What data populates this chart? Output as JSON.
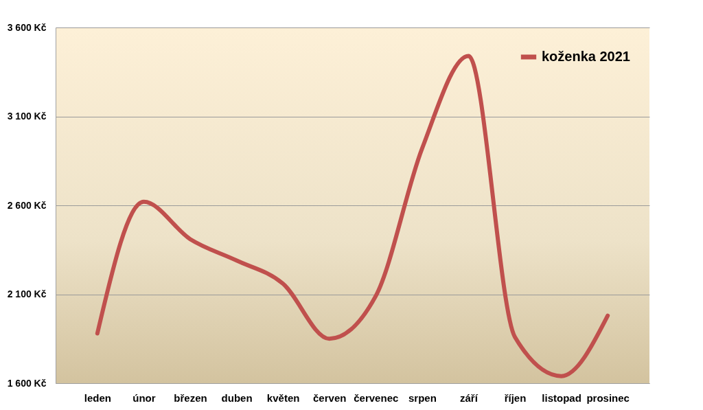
{
  "chart_data": {
    "type": "line",
    "categories": [
      "leden",
      "únor",
      "březen",
      "duben",
      "květen",
      "červen",
      "červenec",
      "srpen",
      "září",
      "říjen",
      "listopad",
      "prosinec"
    ],
    "series": [
      {
        "name": "koženka 2021",
        "color": "#c0504d",
        "values": [
          1880,
          2620,
          2410,
          2290,
          2160,
          1850,
          2090,
          2920,
          3440,
          1860,
          1640,
          1980
        ]
      }
    ],
    "ylim": [
      1600,
      3600
    ],
    "yticks": [
      {
        "value": 1600,
        "label": "1 600 Kč"
      },
      {
        "value": 2100,
        "label": "2 100 Kč"
      },
      {
        "value": 2600,
        "label": "2 600 Kč"
      },
      {
        "value": 3100,
        "label": "3 100 Kč"
      },
      {
        "value": 3600,
        "label": "3 600 Kč"
      }
    ],
    "grid": "y",
    "legend": "top right",
    "marker": "none",
    "line_style": "solid"
  }
}
